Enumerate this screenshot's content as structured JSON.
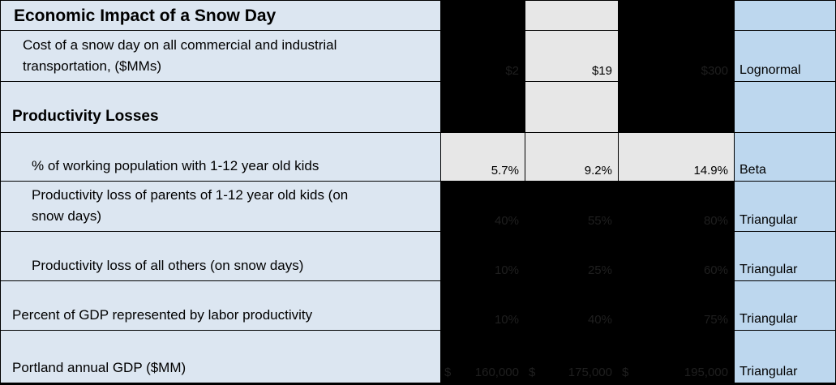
{
  "title": "Economic Impact of a Snow Day",
  "section_header": "Productivity Losses",
  "colors": {
    "label_column_bg": "#dce6f1",
    "distribution_column_bg": "#bdd7ee",
    "visible_value_bg": "#e7e7e7",
    "hidden_value_bg": "#000000"
  },
  "chart_data": {
    "type": "table",
    "title": "Economic Impact of a Snow Day",
    "rows": [
      {
        "label": "Cost of a snow day on all commercial and industrial transportation, ($MMs)",
        "low": "$2",
        "mid": "$19",
        "high": "$300",
        "distribution": "Lognormal"
      },
      {
        "label": "% of working population with 1-12 year old kids",
        "low": "5.7%",
        "mid": "9.2%",
        "high": "14.9%",
        "distribution": "Beta"
      },
      {
        "label": "Productivity loss of parents of 1-12 year old kids (on snow days)",
        "low": "40%",
        "mid": "55%",
        "high": "80%",
        "distribution": "Triangular"
      },
      {
        "label": "Productivity loss of all others (on snow days)",
        "low": "10%",
        "mid": "25%",
        "high": "60%",
        "distribution": "Triangular"
      },
      {
        "label": "Percent of GDP represented by labor productivity",
        "low": "10%",
        "mid": "40%",
        "high": "75%",
        "distribution": "Triangular"
      },
      {
        "label": "Portland annual GDP ($MM)",
        "low": "$ 160,000",
        "mid": "$ 175,000",
        "high": "$ 195,000",
        "distribution": "Triangular"
      }
    ]
  },
  "rows": [
    {
      "label": "Cost of a snow day on all commercial and industrial\ntransportation, ($MMs)",
      "low": "$2",
      "mid": "$19",
      "high": "$300",
      "distribution": "Lognormal"
    },
    {
      "label": "% of working population with 1-12 year old kids",
      "low": "5.7%",
      "mid": "9.2%",
      "high": "14.9%",
      "distribution": "Beta"
    },
    {
      "label": "Productivity loss of parents of 1-12 year old kids (on\nsnow days)",
      "low": "40%",
      "mid": "55%",
      "high": "80%",
      "distribution": "Triangular"
    },
    {
      "label": "Productivity loss of all others (on snow days)",
      "low": "10%",
      "mid": "25%",
      "high": "60%",
      "distribution": "Triangular"
    },
    {
      "label": "Percent of GDP represented by labor productivity",
      "low": "10%",
      "mid": "40%",
      "high": "75%",
      "distribution": "Triangular"
    },
    {
      "label": "Portland annual GDP ($MM)",
      "currency_symbol": "$",
      "low": "160,000",
      "mid": "175,000",
      "high": "195,000",
      "distribution": "Triangular"
    }
  ]
}
